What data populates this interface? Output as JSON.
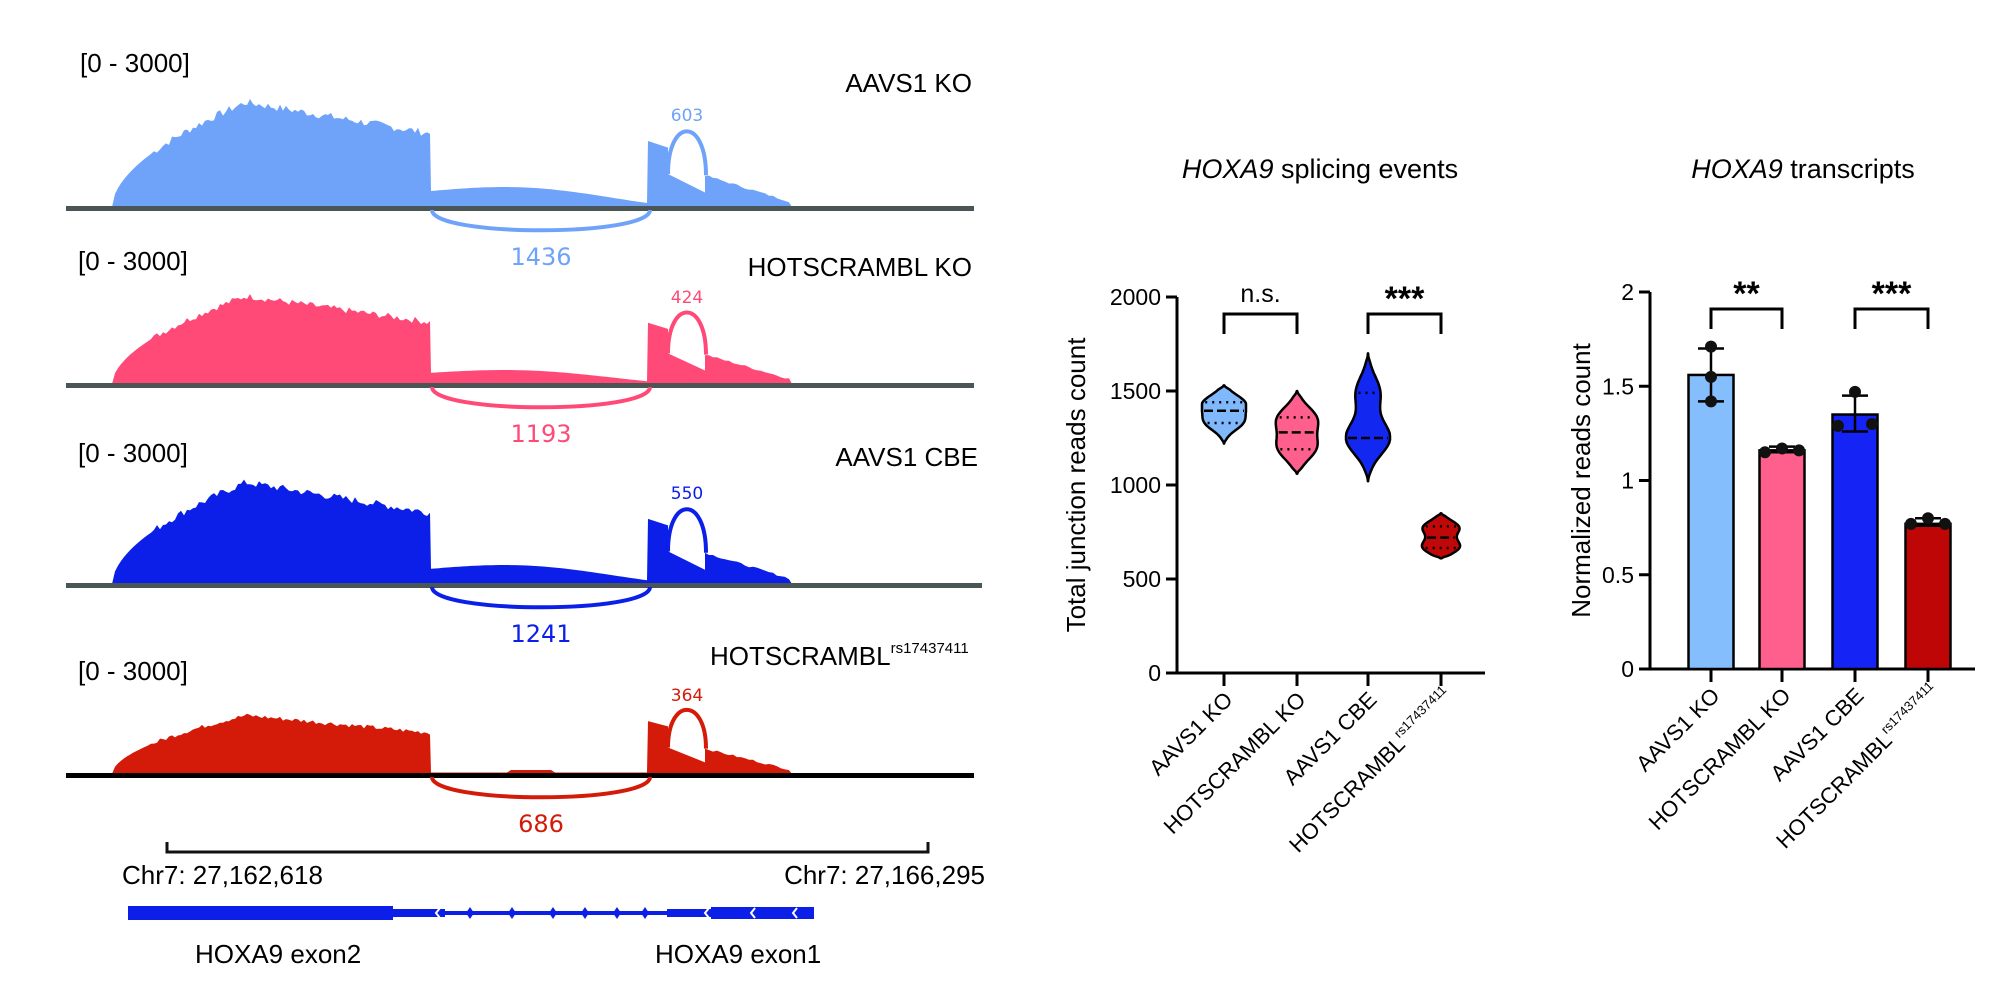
{
  "coverage_panel": {
    "tracks": [
      {
        "range_label": "[0 - 3000]",
        "sample": "AAVS1 KO",
        "sample_sup": "",
        "color": "#6fa3f9",
        "axis_color": "#4a5655",
        "junction_long": "1436",
        "junction_short": "603",
        "coverage_scale": 1.0,
        "intron_scale": 1.0
      },
      {
        "range_label": "[0 - 3000]",
        "sample": "HOTSCRAMBL KO",
        "sample_sup": "",
        "color": "#ff4a78",
        "axis_color": "#4a5655",
        "junction_long": "1193",
        "junction_short": "424",
        "coverage_scale": 0.84,
        "intron_scale": 0.7
      },
      {
        "range_label": "[0 - 3000]",
        "sample": "AAVS1 CBE",
        "sample_sup": "",
        "color": "#0b1fe8",
        "axis_color": "#4a5655",
        "junction_long": "1241",
        "junction_short": "550",
        "coverage_scale": 0.97,
        "intron_scale": 0.95
      },
      {
        "range_label": "[0 - 3000]",
        "sample": "HOTSCRAMBL",
        "sample_sup": "rs17437411",
        "color": "#d41a08",
        "axis_color": "#000000",
        "junction_long": "686",
        "junction_short": "364",
        "coverage_scale": 0.56,
        "intron_scale": 0.2
      }
    ],
    "scale_bar": {
      "left_label": "Chr7: 27,162,618",
      "right_label": "Chr7: 27,166,295"
    },
    "gene": {
      "color": "#0b1fe8",
      "exon2_label": "HOXA9 exon2",
      "exon1_label": "HOXA9 exon1"
    }
  },
  "chart_data": [
    {
      "type": "violin",
      "title_italic": "HOXA9",
      "title_rest": " splicing events",
      "ylabel": "Total junction reads count",
      "xlabel": "",
      "ylim": [
        0,
        2000
      ],
      "yticks": [
        "0",
        "500",
        "1000",
        "1500",
        "2000"
      ],
      "ytick_values": [
        0,
        500,
        1000,
        1500,
        2000
      ],
      "categories": [
        {
          "label": "AAVS1 KO",
          "sup": ""
        },
        {
          "label": "HOTSCRAMBL KO",
          "sup": ""
        },
        {
          "label": "AAVS1 CBE",
          "sup": ""
        },
        {
          "label": "HOTSCRAMBL",
          "sup": "rs17437411"
        }
      ],
      "series": [
        {
          "name": "AAVS1 KO",
          "color": "#7fb8fb",
          "min": 1220,
          "q1": 1330,
          "median": 1395,
          "q3": 1440,
          "max": 1530
        },
        {
          "name": "HOTSCRAMBL KO",
          "color": "#ff5f8c",
          "min": 1060,
          "q1": 1190,
          "median": 1280,
          "q3": 1360,
          "max": 1500
        },
        {
          "name": "AAVS1 CBE",
          "color": "#1227f0",
          "min": 1020,
          "q1": 1250,
          "median": 1250,
          "q3": 1490,
          "max": 1700
        },
        {
          "name": "HOTSCRAMBL rs17437411",
          "color": "#c00808",
          "min": 610,
          "q1": 665,
          "median": 720,
          "q3": 780,
          "max": 850
        }
      ],
      "significance": [
        {
          "from": 0,
          "to": 1,
          "label": "n.s."
        },
        {
          "from": 2,
          "to": 3,
          "label": "***"
        }
      ],
      "grid": false
    },
    {
      "type": "bar",
      "title_italic": "HOXA9",
      "title_rest": " transcripts",
      "ylabel": "Normalized reads count",
      "xlabel": "",
      "ylim": [
        0,
        2
      ],
      "yticks": [
        "0",
        "0.5",
        "1",
        "1.5",
        "2"
      ],
      "ytick_values": [
        0,
        0.5,
        1,
        1.5,
        2
      ],
      "categories": [
        {
          "label": "AAVS1 KO",
          "sup": ""
        },
        {
          "label": "HOTSCRAMBL KO",
          "sup": ""
        },
        {
          "label": "AAVS1 CBE",
          "sup": ""
        },
        {
          "label": "HOTSCRAMBL",
          "sup": "rs17437411"
        }
      ],
      "values": [
        1.56,
        1.16,
        1.35,
        0.77
      ],
      "errors": [
        [
          1.42,
          1.7
        ],
        [
          1.15,
          1.18
        ],
        [
          1.26,
          1.45
        ],
        [
          0.76,
          0.8
        ]
      ],
      "points": [
        [
          1.71,
          1.55,
          1.42
        ],
        [
          1.15,
          1.17,
          1.16
        ],
        [
          1.29,
          1.47,
          1.3
        ],
        [
          0.77,
          0.8,
          0.77
        ]
      ],
      "colors": [
        "#85befc",
        "#ff5f8c",
        "#1524f5",
        "#be0606"
      ],
      "significance": [
        {
          "from": 0,
          "to": 1,
          "label": "**"
        },
        {
          "from": 2,
          "to": 3,
          "label": "***"
        }
      ],
      "grid": false
    }
  ]
}
